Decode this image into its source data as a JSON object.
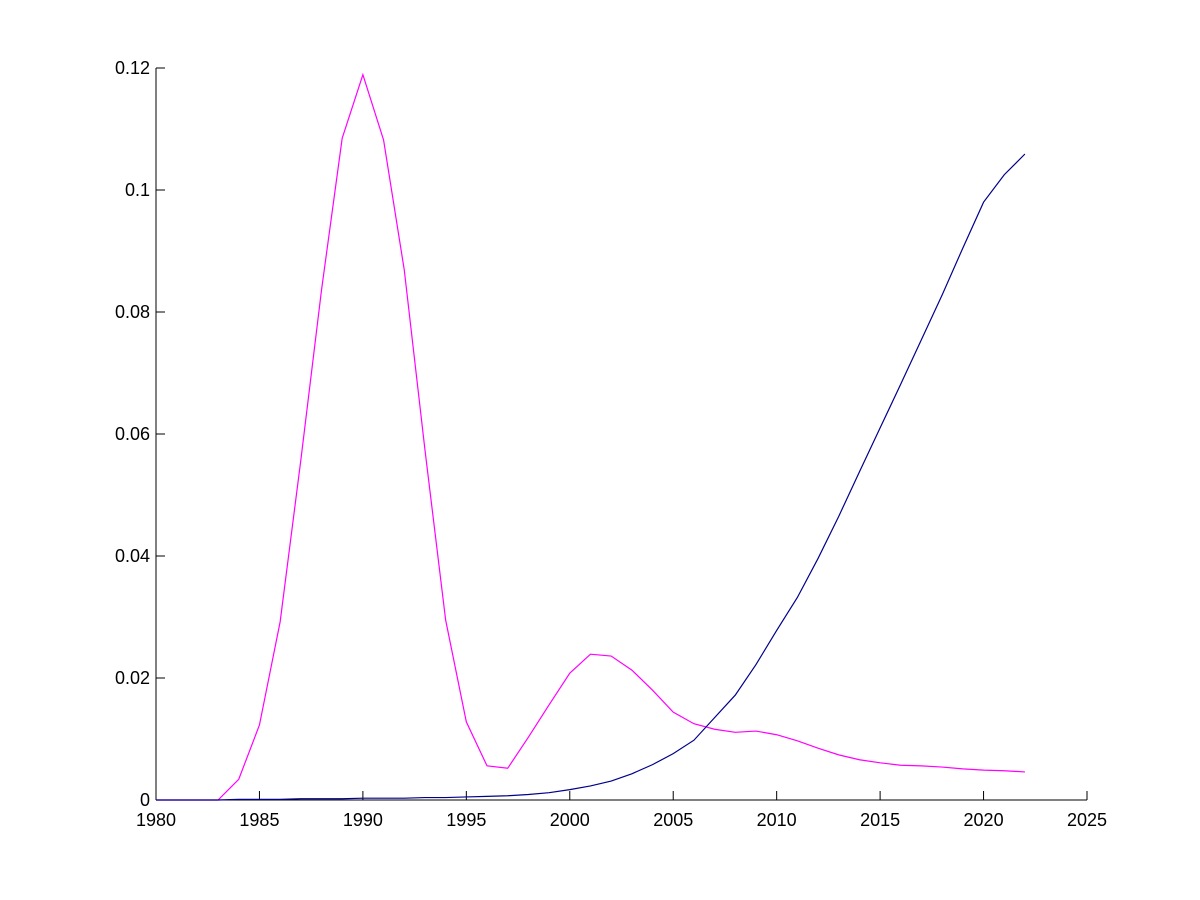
{
  "chart_data": {
    "type": "line",
    "x": [
      1980,
      1981,
      1982,
      1983,
      1984,
      1985,
      1986,
      1987,
      1988,
      1989,
      1990,
      1991,
      1992,
      1993,
      1994,
      1995,
      1996,
      1997,
      1998,
      1999,
      2000,
      2001,
      2002,
      2003,
      2004,
      2005,
      2006,
      2007,
      2008,
      2009,
      2010,
      2011,
      2012,
      2013,
      2014,
      2015,
      2016,
      2017,
      2018,
      2019,
      2020,
      2021,
      2022
    ],
    "series": [
      {
        "color": "#ff00ff",
        "values": [
          0,
          0,
          0,
          0,
          0.0034,
          0.0123,
          0.0292,
          0.0557,
          0.0836,
          0.1085,
          0.1189,
          0.1082,
          0.0869,
          0.0574,
          0.0295,
          0.0128,
          0.0056,
          0.0052,
          0.0103,
          0.0156,
          0.0208,
          0.0239,
          0.0236,
          0.0213,
          0.018,
          0.0144,
          0.0125,
          0.0116,
          0.0111,
          0.0113,
          0.0107,
          0.0097,
          0.0085,
          0.0074,
          0.0066,
          0.0061,
          0.0057,
          0.0056,
          0.0054,
          0.0051,
          0.0049,
          0.0048,
          0.0046
        ]
      },
      {
        "color": "#00008b",
        "values": [
          0,
          0,
          0,
          0,
          0.0001,
          0.0001,
          0.0001,
          0.0002,
          0.0002,
          0.0002,
          0.0003,
          0.0003,
          0.0003,
          0.0004,
          0.0004,
          0.0005,
          0.0006,
          0.0007,
          0.0009,
          0.0012,
          0.0017,
          0.0023,
          0.0031,
          0.0043,
          0.0058,
          0.0076,
          0.0098,
          0.0135,
          0.0172,
          0.0222,
          0.0278,
          0.0332,
          0.0396,
          0.0465,
          0.0538,
          0.061,
          0.0682,
          0.0755,
          0.0828,
          0.0905,
          0.098,
          0.1025,
          0.1059
        ]
      }
    ],
    "xlim": [
      1980,
      2025
    ],
    "xticks": [
      1980,
      1985,
      1990,
      1995,
      2000,
      2005,
      2010,
      2015,
      2020,
      2025
    ],
    "ylim": [
      0,
      0.12
    ],
    "yticks": [
      0,
      0.02,
      0.04,
      0.06,
      0.08,
      0.1,
      0.12
    ]
  }
}
